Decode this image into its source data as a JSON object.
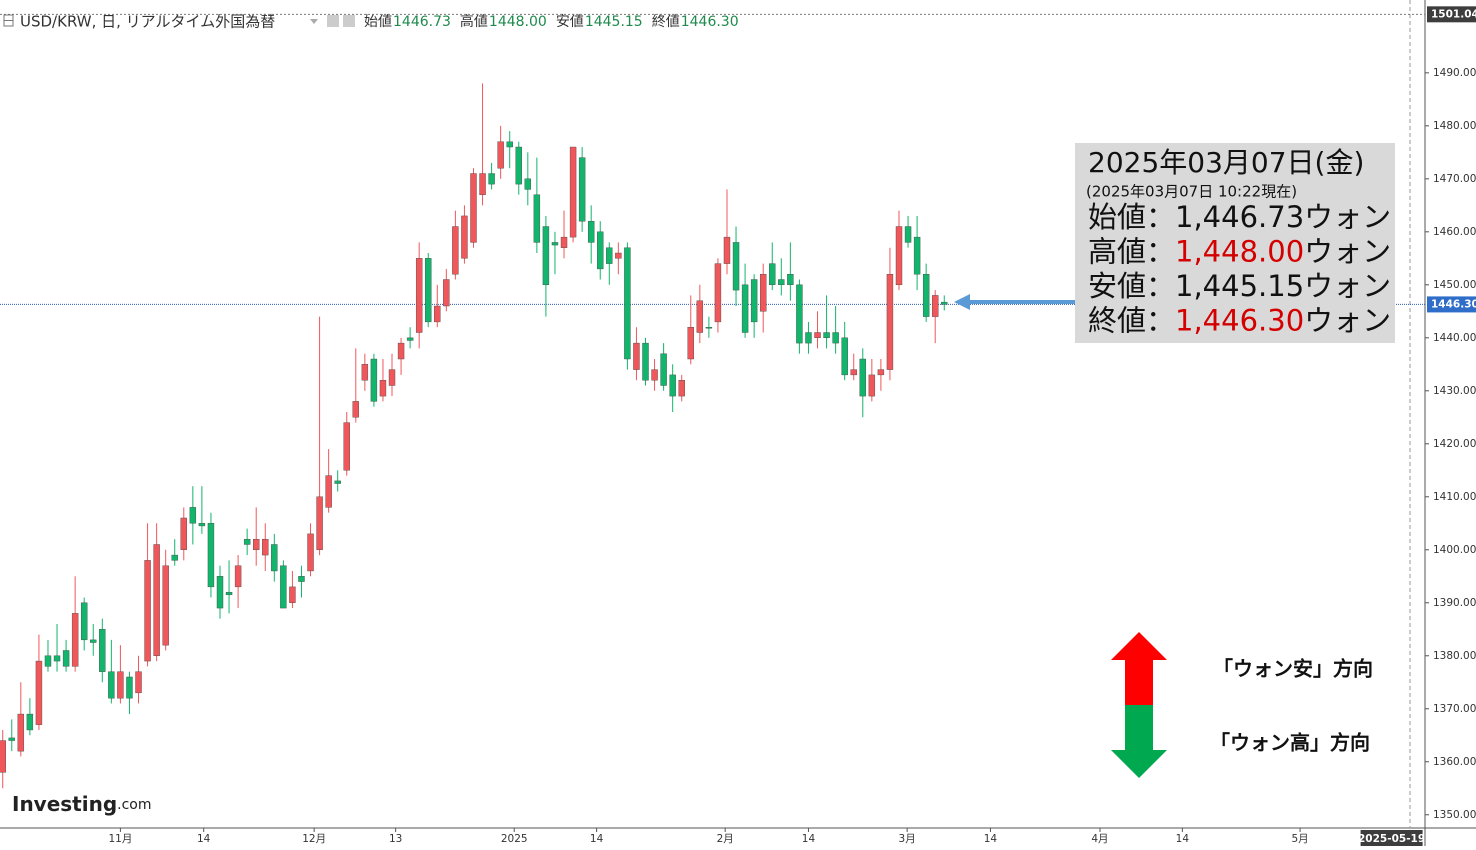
{
  "chart_data": {
    "type": "candlestick",
    "title": "USD/KRW, 日, リアルタイム外国為替",
    "legend": [
      {
        "label": "始値",
        "value": "1446.73"
      },
      {
        "label": "高値",
        "value": "1448.00"
      },
      {
        "label": "安値",
        "value": "1445.15"
      },
      {
        "label": "終値",
        "value": "1446.30"
      }
    ],
    "up_color": "#f0575a",
    "down_color": "#12b56c",
    "open": [
      1358,
      1364.5,
      1362,
      1369,
      1367,
      1380,
      1380,
      1381,
      1378,
      1390,
      1383,
      1385,
      1377,
      1372,
      1376,
      1373,
      1379,
      1380,
      1382,
      1399,
      1400,
      1408,
      1405,
      1405,
      1395,
      1392,
      1393,
      1402,
      1400,
      1399,
      1401,
      1397,
      1390,
      1395,
      1396,
      1400,
      1408,
      1413,
      1415,
      1425,
      1432,
      1436,
      1429,
      1431,
      1436,
      1440,
      1441,
      1455,
      1443,
      1446,
      1452,
      1455,
      1458,
      1467,
      1471,
      1472,
      1477,
      1476,
      1470,
      1467,
      1461,
      1458,
      1457,
      1459,
      1474,
      1462,
      1460,
      1457,
      1455,
      1457,
      1434,
      1439,
      1432,
      1437,
      1433,
      1429,
      1436,
      1441,
      1442,
      1443,
      1454,
      1458,
      1450,
      1451,
      1445,
      1454,
      1451,
      1452,
      1450,
      1441,
      1440,
      1441,
      1441,
      1440,
      1433,
      1436,
      1429,
      1433,
      1434,
      1450,
      1461,
      1459,
      1452,
      1444,
      1446.73
    ],
    "high": [
      1366,
      1368,
      1375,
      1372,
      1384,
      1383,
      1386,
      1383,
      1395,
      1391,
      1386,
      1387,
      1383,
      1382,
      1377,
      1380,
      1405,
      1405,
      1400,
      1402,
      1408,
      1412,
      1412,
      1407,
      1397,
      1398,
      1399,
      1404,
      1408,
      1405,
      1403,
      1398,
      1396,
      1397,
      1405,
      1444,
      1419,
      1415,
      1426,
      1438,
      1437,
      1437,
      1436,
      1437,
      1440,
      1442,
      1458,
      1456,
      1450,
      1453,
      1464,
      1465,
      1472,
      1488,
      1473,
      1480,
      1479,
      1477,
      1475,
      1474,
      1463,
      1460,
      1464,
      1476,
      1476,
      1465,
      1462,
      1458,
      1458,
      1458,
      1442,
      1440,
      1436,
      1439,
      1435,
      1433,
      1448,
      1450,
      1444,
      1455,
      1468,
      1461,
      1454,
      1452,
      1454,
      1458,
      1455,
      1458,
      1451,
      1443,
      1445,
      1448,
      1446,
      1443,
      1437,
      1438,
      1436,
      1436,
      1457,
      1464,
      1463,
      1463,
      1454,
      1449,
      1448.0
    ],
    "low": [
      1355,
      1362,
      1361,
      1365,
      1366,
      1377,
      1377,
      1377,
      1377,
      1381,
      1380,
      1375,
      1371,
      1371,
      1369,
      1371,
      1378,
      1379,
      1381,
      1397,
      1398,
      1401,
      1403,
      1391,
      1387,
      1388,
      1389,
      1399,
      1397,
      1396,
      1394,
      1389,
      1389,
      1391,
      1395,
      1399,
      1407,
      1411,
      1414,
      1424,
      1430,
      1427,
      1428,
      1429,
      1433,
      1438,
      1438,
      1442,
      1442,
      1445,
      1451,
      1454,
      1457,
      1465,
      1468,
      1470,
      1472,
      1467,
      1465,
      1456,
      1444,
      1452,
      1455,
      1458,
      1460,
      1454,
      1451,
      1450,
      1452,
      1434,
      1432,
      1431,
      1430,
      1430,
      1426,
      1428,
      1435,
      1439,
      1440,
      1441,
      1452,
      1446,
      1440,
      1440,
      1441,
      1449,
      1448,
      1447,
      1437,
      1437,
      1438,
      1438,
      1437,
      1432,
      1432,
      1425,
      1428,
      1430,
      1432,
      1449,
      1457,
      1449,
      1443,
      1439,
      1445.15
    ],
    "close": [
      1364,
      1364,
      1369,
      1366,
      1379,
      1378,
      1379,
      1378,
      1388,
      1383,
      1382.5,
      1377,
      1372,
      1377,
      1372,
      1377,
      1398,
      1401,
      1397,
      1398,
      1406,
      1405,
      1404.5,
      1393,
      1389,
      1391.5,
      1397,
      1401,
      1402,
      1402,
      1396,
      1389,
      1393,
      1394,
      1403,
      1410,
      1414,
      1412.5,
      1424,
      1428,
      1435,
      1428,
      1432,
      1434,
      1439,
      1439.5,
      1455,
      1443,
      1446,
      1451,
      1461,
      1463,
      1471,
      1471,
      1469,
      1477,
      1476,
      1469,
      1468,
      1458,
      1450,
      1457.5,
      1459,
      1476,
      1462,
      1458,
      1453,
      1454,
      1456,
      1436,
      1439,
      1432,
      1434,
      1431,
      1429,
      1432,
      1442,
      1447,
      1441.8,
      1454,
      1459,
      1449,
      1441,
      1443,
      1452,
      1450,
      1450,
      1450,
      1439,
      1439,
      1441,
      1440,
      1439,
      1433,
      1434,
      1429,
      1433,
      1434,
      1452,
      1461,
      1458,
      1452,
      1444,
      1448,
      1446.3
    ],
    "xlim": [
      -0.3,
      157.1
    ],
    "xticks": [
      {
        "value": 13,
        "label": "11月"
      },
      {
        "value": 22.2,
        "label": "14"
      },
      {
        "value": 34.4,
        "label": "12月"
      },
      {
        "value": 43.4,
        "label": "13"
      },
      {
        "value": 56.5,
        "label": "2025"
      },
      {
        "value": 65.6,
        "label": "14"
      },
      {
        "value": 79.8,
        "label": "2月"
      },
      {
        "value": 89,
        "label": "14"
      },
      {
        "value": 99.9,
        "label": "3月"
      },
      {
        "value": 109.1,
        "label": "14"
      },
      {
        "value": 121.2,
        "label": "4月"
      },
      {
        "value": 130.3,
        "label": "14"
      },
      {
        "value": 143.3,
        "label": "5月"
      }
    ],
    "xmarker": {
      "value": 153.3,
      "label": "2025-05-19"
    },
    "ylim": [
      1347.5,
      1502.8
    ],
    "yticks": [
      {
        "value": 1350,
        "label": "1350.00"
      },
      {
        "value": 1360,
        "label": "1360.00"
      },
      {
        "value": 1370,
        "label": "1370.00"
      },
      {
        "value": 1380,
        "label": "1380.00"
      },
      {
        "value": 1390,
        "label": "1390.00"
      },
      {
        "value": 1400,
        "label": "1400.00"
      },
      {
        "value": 1410,
        "label": "1410.00"
      },
      {
        "value": 1420,
        "label": "1420.00"
      },
      {
        "value": 1430,
        "label": "1430.00"
      },
      {
        "value": 1440,
        "label": "1440.00"
      },
      {
        "value": 1450,
        "label": "1450.00"
      },
      {
        "value": 1460,
        "label": "1460.00"
      },
      {
        "value": 1470,
        "label": "1470.00"
      },
      {
        "value": 1480,
        "label": "1480.00"
      },
      {
        "value": 1490,
        "label": "1490.00"
      }
    ],
    "top_price": {
      "value": 1501.04,
      "label": "1501.04"
    },
    "last_price": {
      "value": 1446.3,
      "label": "1446.30"
    },
    "info_box": {
      "date": "2025年03月07日(金)",
      "asof": "(2025年03月07日 10:22現在)",
      "rows": [
        {
          "label": "始値：",
          "value": "1,446.73",
          "unit": "ウォン",
          "color": "#111111"
        },
        {
          "label": "高値：",
          "value": "1,448.00",
          "unit": "ウォン",
          "color": "#d40000"
        },
        {
          "label": "安値：",
          "value": "1,445.15",
          "unit": "ウォン",
          "color": "#111111"
        },
        {
          "label": "終値：",
          "value": "1,446.30",
          "unit": "ウォン",
          "color": "#d40000"
        }
      ]
    },
    "arrows": {
      "up": "「ウォン安」方向",
      "down": "「ウォン高」方向"
    },
    "logo": {
      "brand": "Investing",
      "suffix": ".com"
    }
  }
}
